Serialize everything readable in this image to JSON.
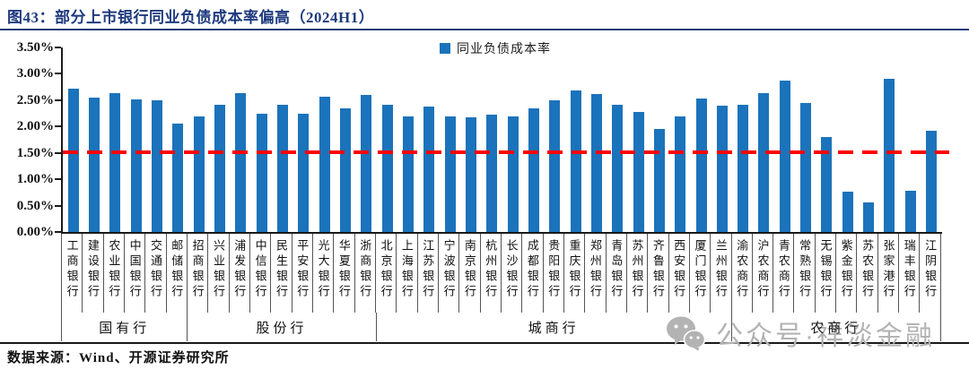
{
  "title": "图43：部分上市银行同业负债成本率偏高（2024H1）",
  "legend": {
    "label": "同业负债成本率"
  },
  "source_note": "数据来源：Wind、开源证券研究所",
  "watermark": {
    "icon": "wechat-icon",
    "text": "公众号",
    "dot": "·",
    "text2": "祥淡金融"
  },
  "colors": {
    "title_navy": "#1E3A7E",
    "bar_blue": "#1B73BB",
    "ref_red": "#FF0000",
    "watermark_gray": "#B3B3B3"
  },
  "chart_data": {
    "type": "bar",
    "title": "部分上市银行同业负债成本率偏高（2024H1）",
    "series_name": "同业负债成本率",
    "unit": "%",
    "ylim": [
      0,
      3.5
    ],
    "ytick_step": 0.5,
    "yticks": [
      "3.50%",
      "3.00%",
      "2.50%",
      "2.00%",
      "1.50%",
      "1.00%",
      "0.50%",
      "0.00%"
    ],
    "reference_line": {
      "value": 1.5,
      "style": "dashed",
      "color": "#FF0000"
    },
    "legend_position": "top-center",
    "grid": false,
    "categories": [
      "工商银行",
      "建设银行",
      "农业银行",
      "中国银行",
      "交通银行",
      "邮储银行",
      "招商银行",
      "兴业银行",
      "浦发银行",
      "中信银行",
      "民生银行",
      "平安银行",
      "光大银行",
      "华夏银行",
      "浙商银行",
      "北京银行",
      "上海银行",
      "江苏银行",
      "宁波银行",
      "南京银行",
      "杭州银行",
      "长沙银行",
      "成都银行",
      "贵阳银行",
      "重庆银行",
      "郑州银行",
      "青岛银行",
      "苏州银行",
      "齐鲁银行",
      "西安银行",
      "厦门银行",
      "兰州银行",
      "渝农商行",
      "沪农商行",
      "青农商行",
      "常熟银行",
      "无锡银行",
      "紫金银行",
      "苏农银行",
      "张家港行",
      "瑞丰银行",
      "江阴银行"
    ],
    "values": [
      2.72,
      2.55,
      2.63,
      2.52,
      2.49,
      2.05,
      2.2,
      2.41,
      2.64,
      2.25,
      2.41,
      2.25,
      2.57,
      2.35,
      2.6,
      2.42,
      2.2,
      2.38,
      2.2,
      2.18,
      2.22,
      2.19,
      2.35,
      2.5,
      2.69,
      2.62,
      2.42,
      2.28,
      1.95,
      2.19,
      2.54,
      2.4,
      2.42,
      2.64,
      2.87,
      2.44,
      1.8,
      0.77,
      0.57,
      2.91,
      0.79,
      1.92
    ],
    "groups": [
      {
        "label": "国有行",
        "count": 6
      },
      {
        "label": "股份行",
        "count": 9
      },
      {
        "label": "城商行",
        "count": 17
      },
      {
        "label": "农商行",
        "count": 10
      }
    ]
  }
}
